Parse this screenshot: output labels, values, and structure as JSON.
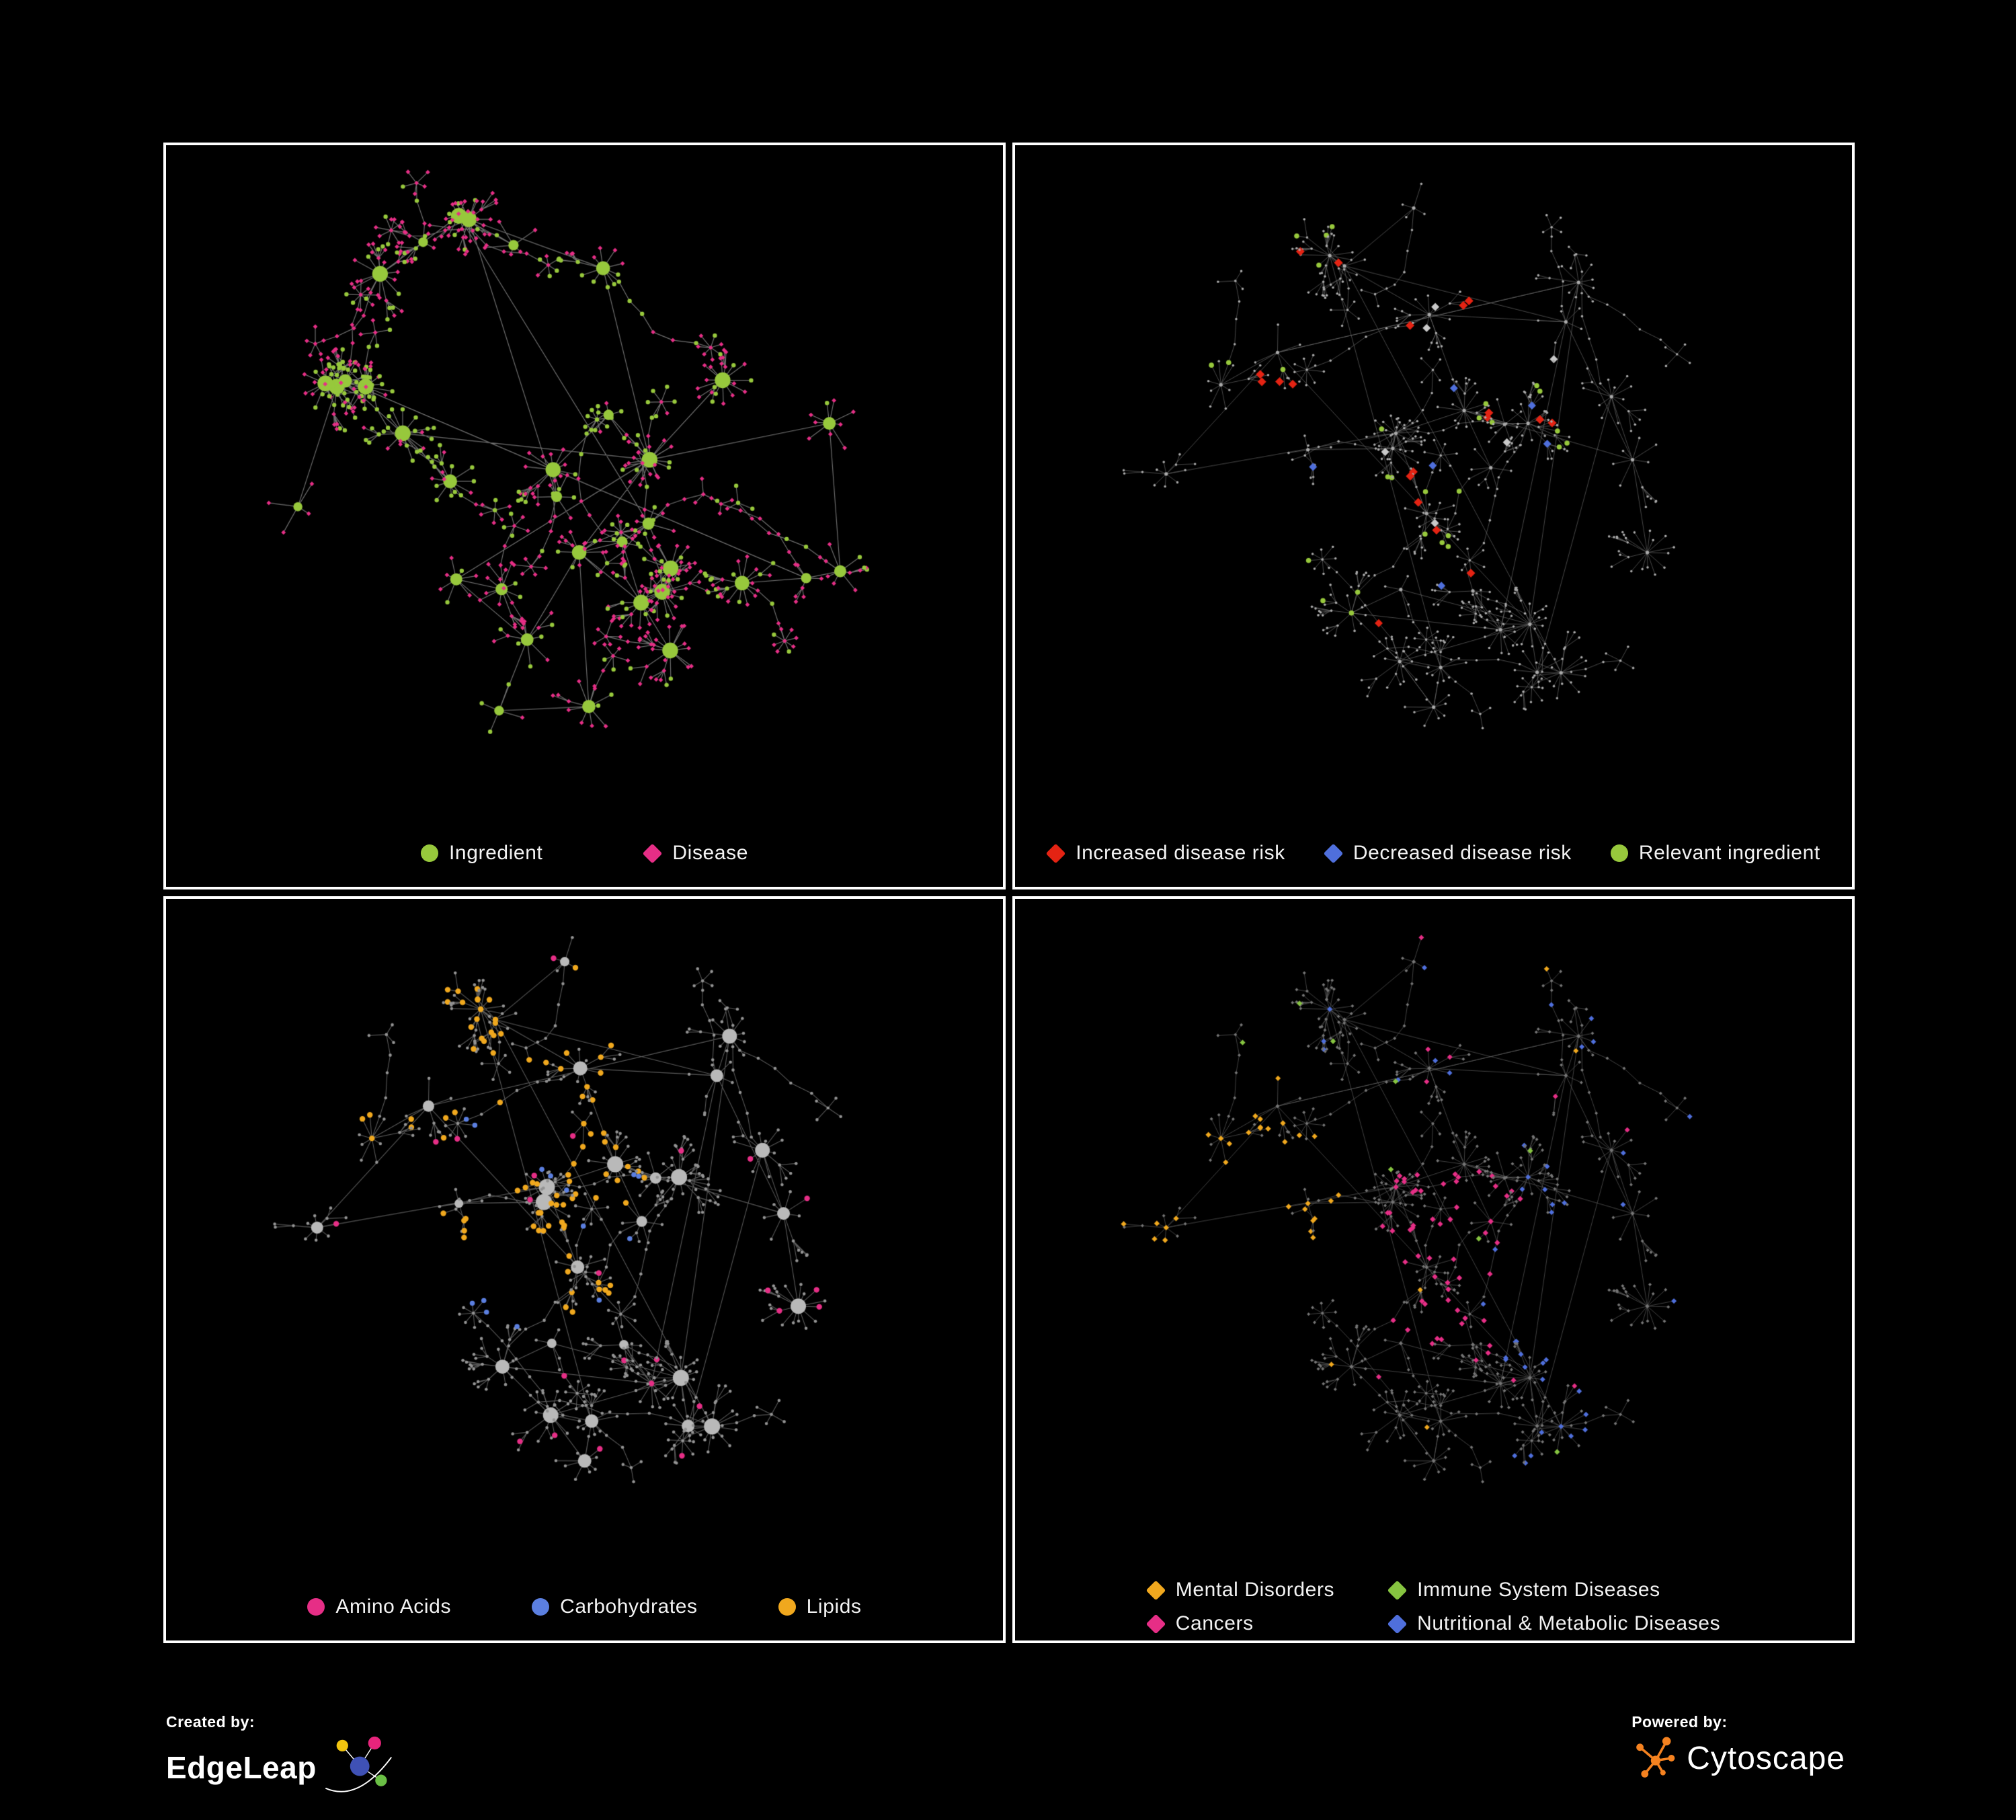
{
  "figure": {
    "background": "#000000",
    "panel_border": "#ffffff"
  },
  "panels": [
    {
      "name": "ingredient-disease-network",
      "legend": [
        {
          "label": "Ingredient",
          "shape": "circle",
          "color": "#97c83c"
        },
        {
          "label": "Disease",
          "shape": "diamond",
          "color": "#e62e86"
        }
      ],
      "network": {
        "edge_color": "#8a8a8a"
      }
    },
    {
      "name": "disease-risk-network",
      "legend": [
        {
          "label": "Increased disease risk",
          "shape": "diamond",
          "color": "#e42313"
        },
        {
          "label": "Decreased disease risk",
          "shape": "diamond",
          "color": "#4f6fdc"
        },
        {
          "label": "Relevant ingredient",
          "shape": "circle",
          "color": "#97c83c"
        }
      ],
      "network": {
        "edge_color": "#6f6f6f",
        "neutral_highlight_color": "#c9c9c9"
      }
    },
    {
      "name": "macronutrient-network",
      "legend": [
        {
          "label": "Amino Acids",
          "shape": "circle",
          "color": "#e62e86"
        },
        {
          "label": "Carbohydrates",
          "shape": "circle",
          "color": "#5b7fe0"
        },
        {
          "label": "Lipids",
          "shape": "circle",
          "color": "#f0a81e"
        }
      ],
      "network": {
        "edge_color": "#7d7d7d"
      }
    },
    {
      "name": "disease-category-network",
      "legend": [
        {
          "label": "Mental Disorders",
          "shape": "diamond",
          "color": "#f0a81e"
        },
        {
          "label": "Immune System Diseases",
          "shape": "diamond",
          "color": "#86c440"
        },
        {
          "label": "Cancers",
          "shape": "diamond",
          "color": "#e62e86"
        },
        {
          "label": "Nutritional & Metabolic Diseases",
          "shape": "diamond",
          "color": "#4f6fdc"
        }
      ],
      "network": {
        "edge_color": "#5d5d5d"
      }
    }
  ],
  "footer": {
    "created_by_label": "Created by:",
    "created_by_brand": "EdgeLeap",
    "powered_by_label": "Powered by:",
    "powered_by_brand": "Cytoscape"
  }
}
